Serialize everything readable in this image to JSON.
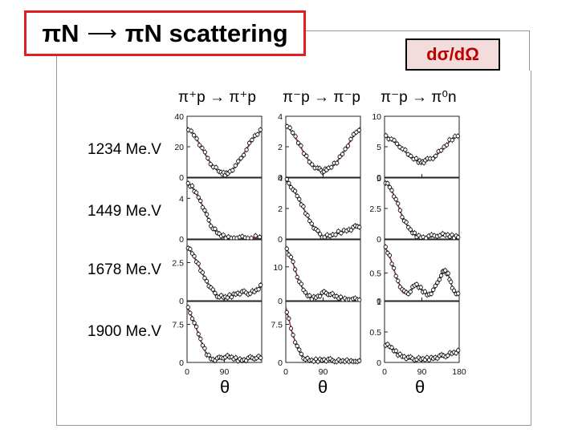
{
  "title": {
    "left": "πN",
    "right": "πN scattering"
  },
  "observable": "dσ/dΩ",
  "reactions": [
    "π⁺p → π⁺p",
    "π⁻p → π⁻p",
    "π⁻p → π⁰n"
  ],
  "energies": [
    "1234 Me.V",
    "1449 Me.V",
    "1678 Me.V",
    "1900 Me.V"
  ],
  "x_axis_label": "θ",
  "x_tick_labels": [
    "0",
    "90",
    "180"
  ],
  "colors": {
    "title_border": "#e02020",
    "observable_text": "#c00000",
    "observable_bg": "#f2dcdc",
    "fit_blue": "#3a3ab8",
    "fit_red": "#d02020",
    "fit_purple": "#7a2a9a"
  },
  "chart_data": {
    "type": "scatter",
    "xlabel": "θ",
    "xlim": [
      0,
      180
    ],
    "panels": [
      {
        "reaction": "π⁺p → π⁺p",
        "energy": "1234 Me.V",
        "yticks": [
          "0",
          "20",
          "40"
        ],
        "ylim": [
          0,
          40
        ],
        "curve": [
          [
            0,
            33
          ],
          [
            20,
            27
          ],
          [
            40,
            17
          ],
          [
            60,
            8
          ],
          [
            80,
            3
          ],
          [
            90,
            2
          ],
          [
            100,
            3
          ],
          [
            120,
            8
          ],
          [
            140,
            17
          ],
          [
            160,
            26
          ],
          [
            180,
            31
          ]
        ]
      },
      {
        "reaction": "π⁻p → π⁻p",
        "energy": "1234 Me.V",
        "yticks": [
          "0",
          "2",
          "4"
        ],
        "ylim": [
          0,
          4
        ],
        "curve": [
          [
            0,
            3.5
          ],
          [
            20,
            2.8
          ],
          [
            40,
            1.8
          ],
          [
            60,
            0.9
          ],
          [
            80,
            0.5
          ],
          [
            90,
            0.4
          ],
          [
            100,
            0.5
          ],
          [
            120,
            0.9
          ],
          [
            140,
            1.7
          ],
          [
            160,
            2.6
          ],
          [
            180,
            3.3
          ]
        ]
      },
      {
        "reaction": "π⁻p → π⁰n",
        "energy": "1234 Me.V",
        "yticks": [
          "0",
          "5",
          "10"
        ],
        "ylim": [
          0,
          10
        ],
        "curve": [
          [
            0,
            7
          ],
          [
            20,
            6
          ],
          [
            40,
            5
          ],
          [
            60,
            3.5
          ],
          [
            80,
            2.7
          ],
          [
            90,
            2.5
          ],
          [
            100,
            2.7
          ],
          [
            120,
            3.4
          ],
          [
            140,
            4.6
          ],
          [
            160,
            6.2
          ],
          [
            180,
            7
          ]
        ]
      },
      {
        "reaction": "π⁺p → π⁺p",
        "energy": "1449 Me.V",
        "yticks": [
          "0",
          "4"
        ],
        "ylim": [
          0,
          6
        ],
        "curve": [
          [
            0,
            5.5
          ],
          [
            15,
            5
          ],
          [
            30,
            4
          ],
          [
            45,
            2.5
          ],
          [
            60,
            1.2
          ],
          [
            75,
            0.5
          ],
          [
            90,
            0.2
          ],
          [
            110,
            0.1
          ],
          [
            130,
            0.1
          ],
          [
            150,
            0.15
          ],
          [
            180,
            0.2
          ]
        ]
      },
      {
        "reaction": "π⁻p → π⁻p",
        "energy": "1449 Me.V",
        "yticks": [
          "0",
          "2",
          "4"
        ],
        "ylim": [
          0,
          4
        ],
        "curve": [
          [
            0,
            3.9
          ],
          [
            15,
            3.4
          ],
          [
            30,
            2.7
          ],
          [
            45,
            1.9
          ],
          [
            60,
            1.1
          ],
          [
            75,
            0.5
          ],
          [
            90,
            0.15
          ],
          [
            110,
            0.2
          ],
          [
            130,
            0.45
          ],
          [
            150,
            0.6
          ],
          [
            165,
            0.75
          ],
          [
            180,
            0.9
          ]
        ]
      },
      {
        "reaction": "π⁻p → π⁰n",
        "energy": "1449 Me.V",
        "yticks": [
          "0",
          "2.5",
          "5"
        ],
        "ylim": [
          0,
          5
        ],
        "curve": [
          [
            0,
            4.8
          ],
          [
            15,
            4.2
          ],
          [
            30,
            3
          ],
          [
            45,
            1.7
          ],
          [
            60,
            0.8
          ],
          [
            75,
            0.3
          ],
          [
            90,
            0.15
          ],
          [
            110,
            0.2
          ],
          [
            130,
            0.35
          ],
          [
            150,
            0.3
          ],
          [
            165,
            0.2
          ],
          [
            180,
            0.2
          ]
        ]
      },
      {
        "reaction": "π⁺p → π⁺p",
        "energy": "1678 Me.V",
        "yticks": [
          "0",
          "2.5"
        ],
        "ylim": [
          0,
          4
        ],
        "curve": [
          [
            0,
            3.6
          ],
          [
            15,
            3
          ],
          [
            30,
            2.2
          ],
          [
            45,
            1.4
          ],
          [
            60,
            0.7
          ],
          [
            75,
            0.3
          ],
          [
            90,
            0.2
          ],
          [
            105,
            0.3
          ],
          [
            120,
            0.5
          ],
          [
            135,
            0.55
          ],
          [
            150,
            0.5
          ],
          [
            165,
            0.6
          ],
          [
            180,
            1
          ]
        ]
      },
      {
        "reaction": "π⁻p → π⁻p",
        "energy": "1678 Me.V",
        "yticks": [
          "0",
          "10"
        ],
        "ylim": [
          0,
          18
        ],
        "curve": [
          [
            0,
            16
          ],
          [
            15,
            12
          ],
          [
            30,
            6.5
          ],
          [
            45,
            2.5
          ],
          [
            60,
            0.8
          ],
          [
            75,
            1.2
          ],
          [
            90,
            2.3
          ],
          [
            105,
            2.2
          ],
          [
            120,
            1.2
          ],
          [
            135,
            0.6
          ],
          [
            150,
            0.4
          ],
          [
            165,
            0.3
          ],
          [
            180,
            0.3
          ]
        ]
      },
      {
        "reaction": "π⁻p → π⁰n",
        "energy": "1678 Me.V",
        "yticks": [
          "0",
          "0.5"
        ],
        "ylim": [
          0,
          1.1
        ],
        "curve": [
          [
            0,
            1
          ],
          [
            15,
            0.75
          ],
          [
            30,
            0.4
          ],
          [
            45,
            0.15
          ],
          [
            60,
            0.15
          ],
          [
            75,
            0.3
          ],
          [
            90,
            0.2
          ],
          [
            105,
            0.1
          ],
          [
            120,
            0.2
          ],
          [
            135,
            0.45
          ],
          [
            145,
            0.55
          ],
          [
            155,
            0.45
          ],
          [
            165,
            0.2
          ],
          [
            180,
            0.1
          ]
        ]
      },
      {
        "reaction": "π⁺p → π⁺p",
        "energy": "1900 Me.V",
        "yticks": [
          "0",
          "7.5"
        ],
        "ylim": [
          0,
          12
        ],
        "curve": [
          [
            0,
            11
          ],
          [
            15,
            8.5
          ],
          [
            30,
            5
          ],
          [
            45,
            2
          ],
          [
            60,
            0.6
          ],
          [
            75,
            0.7
          ],
          [
            90,
            1.2
          ],
          [
            105,
            1
          ],
          [
            120,
            0.6
          ],
          [
            135,
            0.5
          ],
          [
            150,
            0.8
          ],
          [
            165,
            1
          ],
          [
            180,
            0.9
          ]
        ]
      },
      {
        "reaction": "π⁻p → π⁻p",
        "energy": "1900 Me.V",
        "yticks": [
          "0",
          "7.5"
        ],
        "ylim": [
          0,
          12
        ],
        "curve": [
          [
            0,
            11
          ],
          [
            15,
            6
          ],
          [
            30,
            2.5
          ],
          [
            45,
            0.8
          ],
          [
            60,
            0.3
          ],
          [
            75,
            0.4
          ],
          [
            90,
            0.6
          ],
          [
            105,
            0.5
          ],
          [
            120,
            0.3
          ],
          [
            135,
            0.2
          ],
          [
            150,
            0.2
          ],
          [
            165,
            0.2
          ],
          [
            180,
            0.2
          ]
        ]
      },
      {
        "reaction": "π⁻p → π⁰n",
        "energy": "1900 Me.V",
        "yticks": [
          "0",
          "0.5",
          "1"
        ],
        "ylim": [
          0,
          1
        ],
        "curve": [
          [
            0,
            0.3
          ],
          [
            15,
            0.25
          ],
          [
            30,
            0.15
          ],
          [
            45,
            0.1
          ],
          [
            60,
            0.07
          ],
          [
            75,
            0.06
          ],
          [
            90,
            0.05
          ],
          [
            105,
            0.06
          ],
          [
            120,
            0.08
          ],
          [
            135,
            0.1
          ],
          [
            150,
            0.12
          ],
          [
            165,
            0.15
          ],
          [
            180,
            0.18
          ]
        ]
      }
    ]
  }
}
